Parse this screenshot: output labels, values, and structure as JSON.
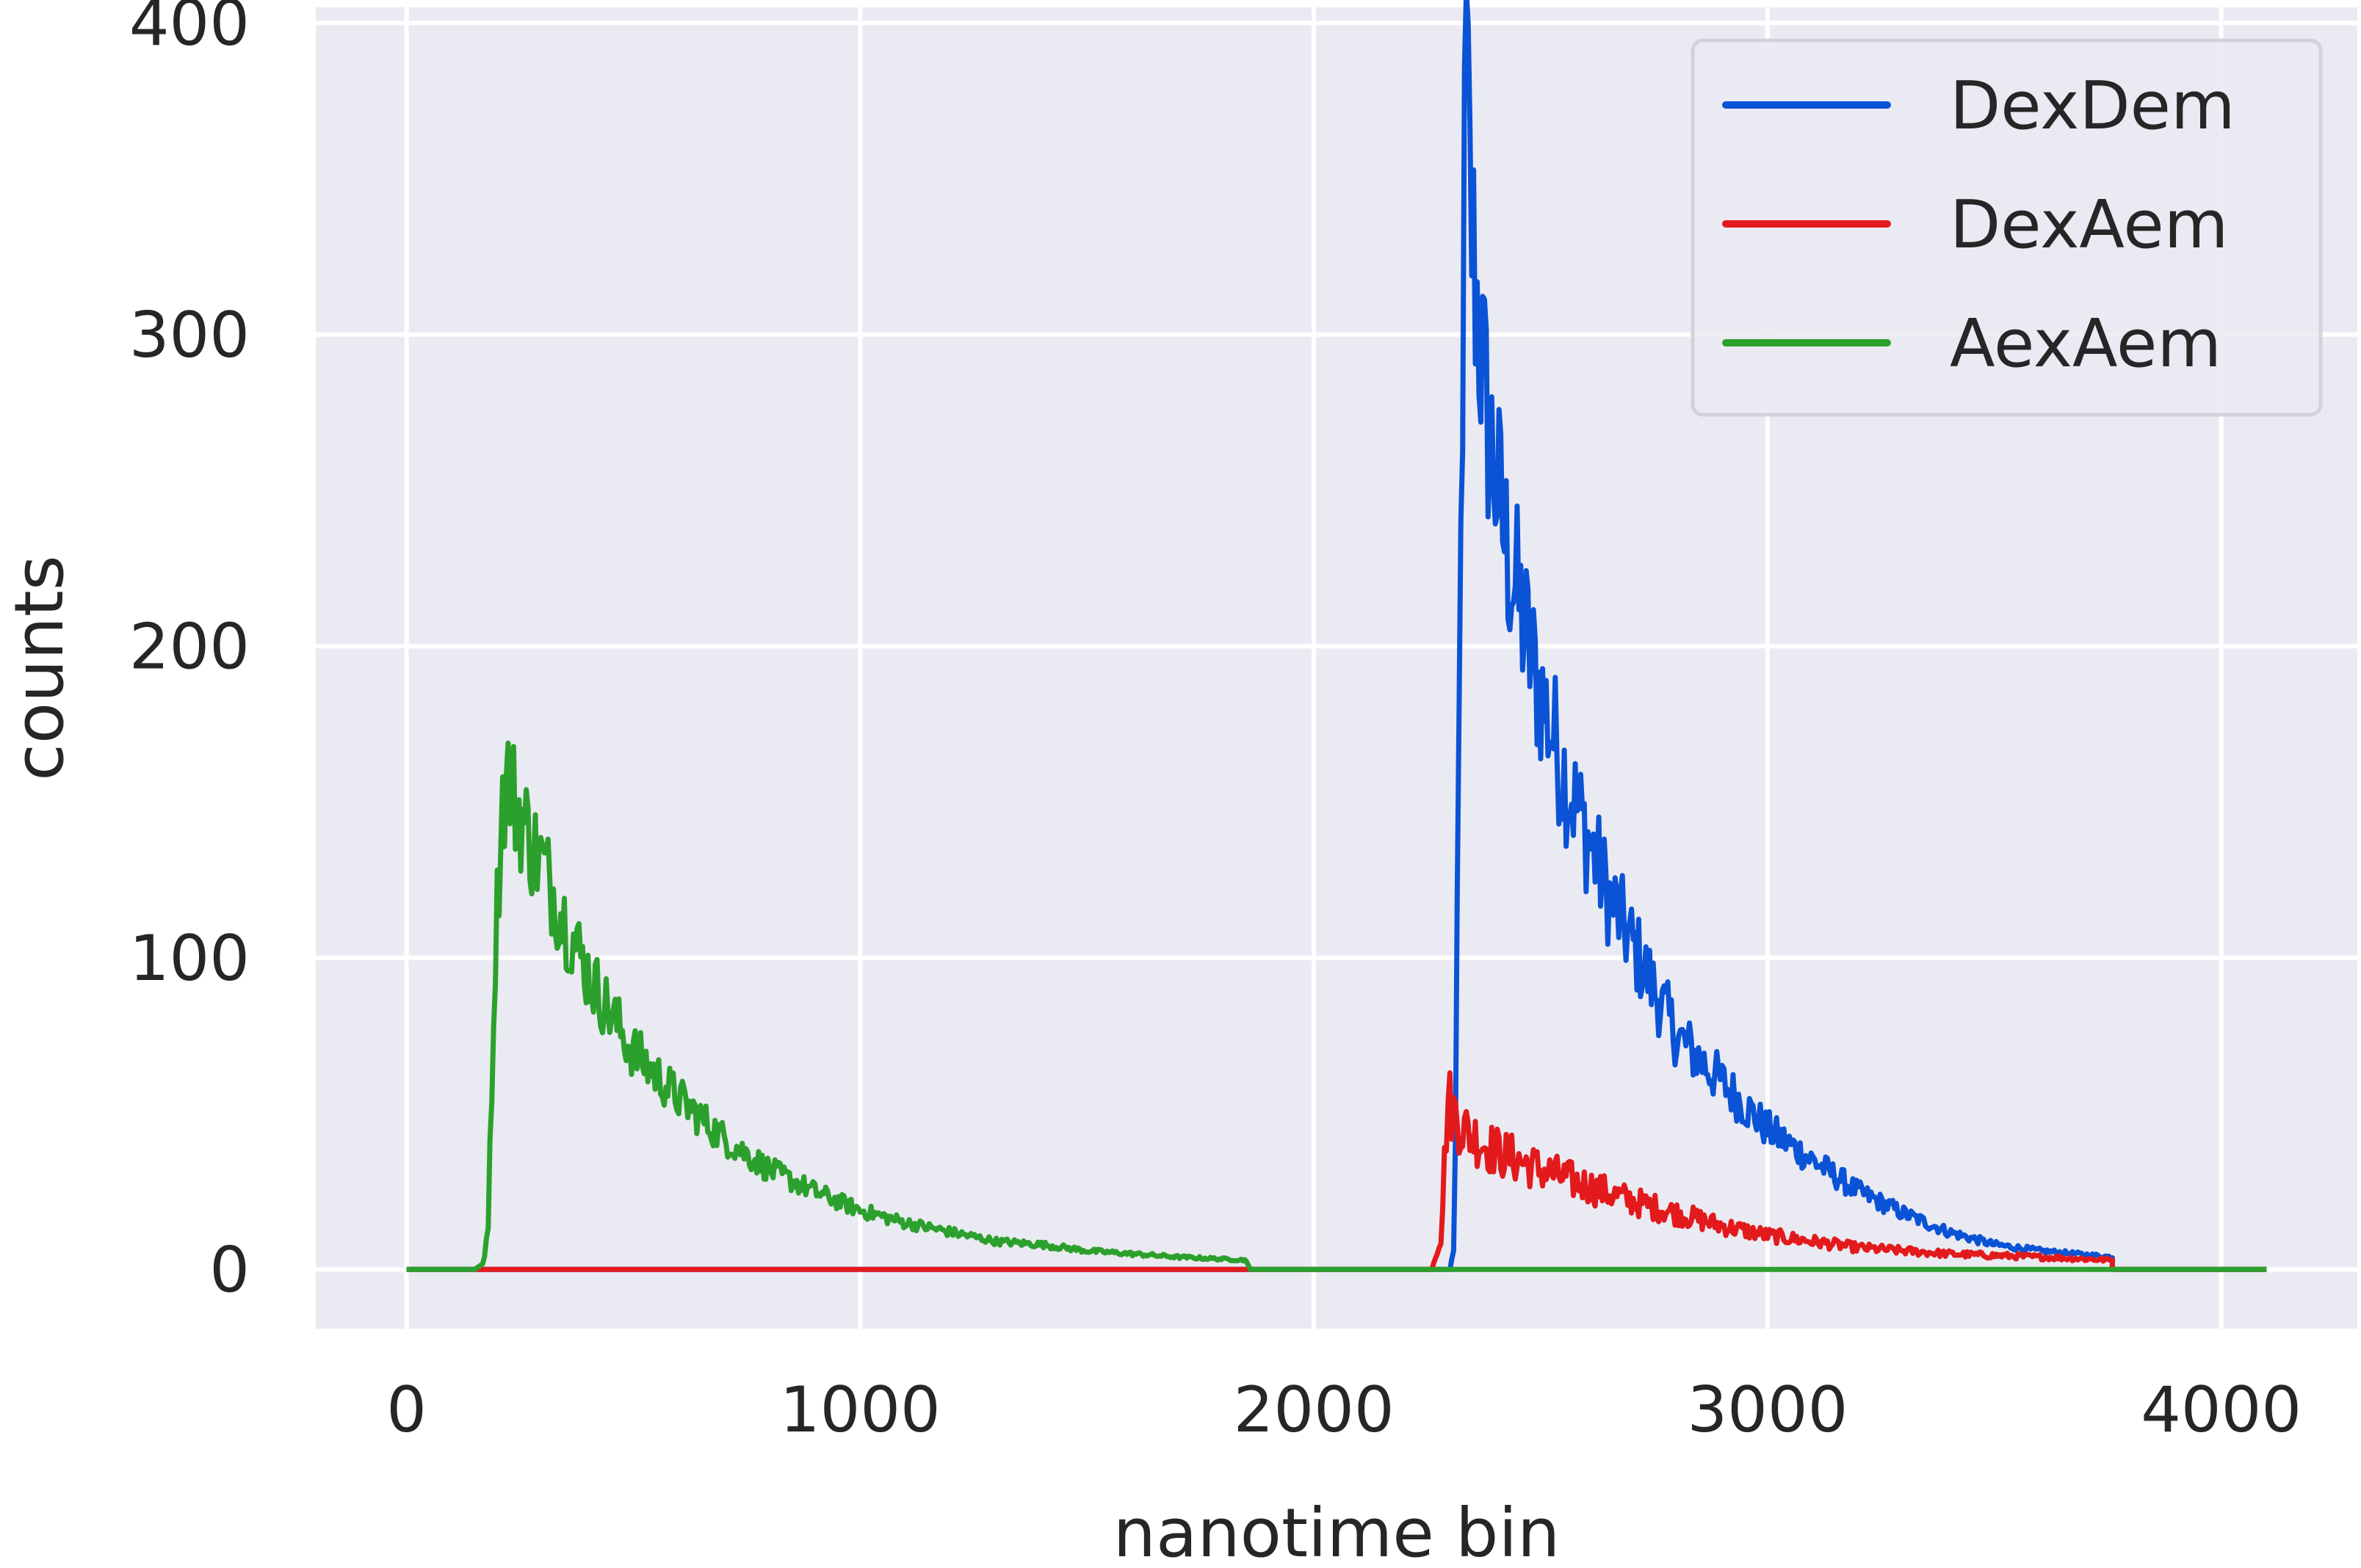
{
  "chart_data": {
    "type": "line",
    "title": "",
    "xlabel": "nanotime bin",
    "ylabel": "counts",
    "xlim": [
      -200,
      4300
    ],
    "ylim": [
      -19,
      405
    ],
    "xticks": [
      0,
      1000,
      2000,
      3000,
      4000
    ],
    "yticks": [
      0,
      100,
      200,
      300,
      400
    ],
    "xtick_labels": [
      "0",
      "1000",
      "2000",
      "3000",
      "4000"
    ],
    "ytick_labels": [
      "0",
      "100",
      "200",
      "300",
      "400"
    ],
    "grid": true,
    "background": "#eaeaf2",
    "gridColor": "#ffffff",
    "legend_position": "top-right",
    "series": [
      {
        "name": "DexDem",
        "color": "#0b53d6",
        "x": [
          0,
          2300,
          2310,
          2320,
          2335,
          2345,
          2360,
          2380,
          2400,
          2420,
          2450,
          2480,
          2500,
          2550,
          2600,
          2650,
          2700,
          2750,
          2800,
          2900,
          3000,
          3100,
          3200,
          3300,
          3400,
          3500,
          3600,
          3760
        ],
        "y": [
          0,
          0,
          8,
          170,
          393,
          340,
          310,
          275,
          255,
          235,
          215,
          195,
          185,
          160,
          140,
          120,
          105,
          90,
          75,
          60,
          45,
          35,
          25,
          18,
          12,
          8,
          6,
          4
        ],
        "noise": 0.14,
        "extend_to": 4100
      },
      {
        "name": "DexAem",
        "color": "#e31a1c",
        "x": [
          0,
          2260,
          2280,
          2295,
          2310,
          2330,
          2360,
          2400,
          2450,
          2500,
          2600,
          2700,
          2800,
          2900,
          3000,
          3100,
          3200,
          3400,
          3600,
          3760
        ],
        "y": [
          0,
          0,
          10,
          55,
          50,
          45,
          42,
          38,
          35,
          32,
          27,
          22,
          18,
          14,
          11,
          9,
          7,
          5,
          4,
          3
        ],
        "noise": 0.22,
        "extend_to": 4100
      },
      {
        "name": "AexAem",
        "color": "#2ca02c",
        "x": [
          0,
          150,
          170,
          180,
          195,
          210,
          225,
          240,
          260,
          280,
          300,
          340,
          400,
          450,
          500,
          600,
          700,
          800,
          900,
          1000,
          1100,
          1200,
          1300,
          1400,
          1500,
          1600,
          1700,
          1850,
          1860,
          4100
        ],
        "y": [
          0,
          0,
          2,
          15,
          100,
          150,
          158,
          150,
          143,
          135,
          130,
          115,
          95,
          82,
          70,
          55,
          42,
          32,
          25,
          19,
          15,
          12,
          9,
          8,
          6,
          5,
          4,
          3,
          0,
          0
        ],
        "noise": 0.13,
        "extend_to": 4100
      }
    ]
  }
}
